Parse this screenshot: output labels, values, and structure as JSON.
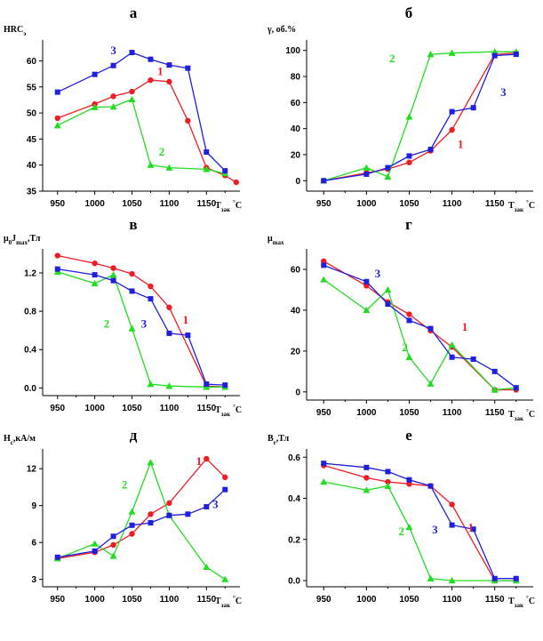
{
  "colors": {
    "1": "#ee1c25",
    "2": "#22dd22",
    "3": "#1f1fdd",
    "axis": "#000000"
  },
  "xunit": "Tзак °C",
  "chart_data": [
    {
      "type": "line",
      "panel": "а",
      "ylabel": "HRCэ",
      "xlim": [
        930,
        1195
      ],
      "ylim": [
        35,
        64
      ],
      "xticks": [
        950,
        1000,
        1050,
        1100,
        1150
      ],
      "yticks": [
        35,
        40,
        45,
        50,
        55,
        60
      ],
      "series": [
        {
          "name": "1",
          "marker": "circle",
          "x": [
            950,
            1000,
            1025,
            1050,
            1075,
            1100,
            1125,
            1150,
            1175,
            1190
          ],
          "y": [
            49,
            51.7,
            53.2,
            54.1,
            56.3,
            56,
            48.5,
            39.5,
            38,
            36.7
          ]
        },
        {
          "name": "2",
          "marker": "triangle",
          "x": [
            950,
            1000,
            1025,
            1050,
            1075,
            1100,
            1150,
            1175
          ],
          "y": [
            47.6,
            51.1,
            51.2,
            52.6,
            40,
            39.5,
            39.2,
            38.4
          ]
        },
        {
          "name": "3",
          "marker": "square",
          "x": [
            950,
            1000,
            1025,
            1050,
            1075,
            1100,
            1125,
            1150,
            1175
          ],
          "y": [
            54,
            57.4,
            59.1,
            61.6,
            60.3,
            59.2,
            58.6,
            42.5,
            38.9
          ]
        }
      ],
      "labels": [
        {
          "text": "3",
          "series": "3",
          "x": 1025,
          "y": 61.3
        },
        {
          "text": "1",
          "series": "1",
          "x": 1088,
          "y": 57.3
        },
        {
          "text": "2",
          "series": "2",
          "x": 1090,
          "y": 41.8
        }
      ]
    },
    {
      "type": "line",
      "panel": "б",
      "ylabel": "γ, об.%",
      "xlim": [
        930,
        1195
      ],
      "ylim": [
        -8,
        108
      ],
      "xticks": [
        950,
        1000,
        1050,
        1100,
        1150
      ],
      "yticks": [
        0,
        20,
        40,
        60,
        80,
        100
      ],
      "series": [
        {
          "name": "1",
          "marker": "circle",
          "x": [
            950,
            1000,
            1025,
            1050,
            1075,
            1100,
            1150,
            1175
          ],
          "y": [
            0,
            6,
            9,
            14,
            23,
            39,
            97,
            98
          ]
        },
        {
          "name": "2",
          "marker": "triangle",
          "x": [
            950,
            1000,
            1025,
            1050,
            1075,
            1100,
            1150,
            1175
          ],
          "y": [
            0,
            10,
            3,
            49,
            97,
            98,
            99,
            99
          ]
        },
        {
          "name": "3",
          "marker": "square",
          "x": [
            950,
            1000,
            1025,
            1050,
            1075,
            1100,
            1125,
            1150,
            1175
          ],
          "y": [
            0,
            5,
            10,
            19,
            24,
            53,
            56,
            96,
            97
          ]
        }
      ],
      "labels": [
        {
          "text": "2",
          "series": "2",
          "x": 1030,
          "y": 91
        },
        {
          "text": "3",
          "series": "3",
          "x": 1160,
          "y": 65
        },
        {
          "text": "1",
          "series": "1",
          "x": 1110,
          "y": 25
        }
      ]
    },
    {
      "type": "line",
      "panel": "в",
      "ylabel": "μ0Jmax,Тл",
      "xlim": [
        930,
        1195
      ],
      "ylim": [
        -0.08,
        1.45
      ],
      "xticks": [
        950,
        1000,
        1050,
        1100,
        1150
      ],
      "yticks": [
        0.0,
        0.4,
        0.8,
        1.2
      ],
      "series": [
        {
          "name": "1",
          "marker": "circle",
          "x": [
            950,
            1000,
            1025,
            1050,
            1075,
            1100,
            1150,
            1175
          ],
          "y": [
            1.38,
            1.3,
            1.25,
            1.19,
            1.06,
            0.84,
            0.02,
            0.01
          ]
        },
        {
          "name": "2",
          "marker": "triangle",
          "x": [
            950,
            1000,
            1025,
            1050,
            1075,
            1100,
            1150,
            1175
          ],
          "y": [
            1.21,
            1.09,
            1.18,
            0.62,
            0.04,
            0.02,
            0.01,
            0.01
          ]
        },
        {
          "name": "3",
          "marker": "square",
          "x": [
            950,
            1000,
            1025,
            1050,
            1075,
            1100,
            1125,
            1150,
            1175
          ],
          "y": [
            1.24,
            1.18,
            1.12,
            1.01,
            0.93,
            0.57,
            0.55,
            0.04,
            0.03
          ]
        }
      ],
      "labels": [
        {
          "text": "2",
          "series": "2",
          "x": 1016,
          "y": 0.63
        },
        {
          "text": "3",
          "series": "3",
          "x": 1066,
          "y": 0.63
        },
        {
          "text": "1",
          "series": "1",
          "x": 1122,
          "y": 0.67
        }
      ]
    },
    {
      "type": "line",
      "panel": "г",
      "ylabel": "μmax",
      "xlim": [
        930,
        1195
      ],
      "ylim": [
        -4,
        70
      ],
      "xticks": [
        950,
        1000,
        1050,
        1100,
        1150
      ],
      "yticks": [
        0,
        20,
        40,
        60
      ],
      "series": [
        {
          "name": "1",
          "marker": "circle",
          "x": [
            950,
            1000,
            1025,
            1050,
            1075,
            1100,
            1150,
            1175
          ],
          "y": [
            64,
            52,
            44,
            38,
            30,
            22,
            1,
            1
          ]
        },
        {
          "name": "2",
          "marker": "triangle",
          "x": [
            950,
            1000,
            1025,
            1050,
            1075,
            1100,
            1150,
            1175
          ],
          "y": [
            55,
            40,
            50,
            17,
            4,
            23,
            1,
            2
          ]
        },
        {
          "name": "3",
          "marker": "square",
          "x": [
            950,
            1000,
            1025,
            1050,
            1075,
            1100,
            1125,
            1150,
            1175
          ],
          "y": [
            62,
            54,
            43,
            35,
            31,
            17,
            16,
            10,
            2
          ]
        }
      ],
      "labels": [
        {
          "text": "3",
          "series": "3",
          "x": 1013,
          "y": 56
        },
        {
          "text": "1",
          "series": "1",
          "x": 1115,
          "y": 30
        },
        {
          "text": "2",
          "series": "2",
          "x": 1045,
          "y": 20
        }
      ]
    },
    {
      "type": "line",
      "panel": "д",
      "ylabel": "Hc,кА/м",
      "xlim": [
        930,
        1195
      ],
      "ylim": [
        2.4,
        13.6
      ],
      "xticks": [
        950,
        1000,
        1050,
        1100,
        1150
      ],
      "yticks": [
        3,
        6,
        9,
        12
      ],
      "series": [
        {
          "name": "1",
          "marker": "circle",
          "x": [
            950,
            1000,
            1025,
            1050,
            1075,
            1100,
            1150,
            1175
          ],
          "y": [
            4.7,
            5.2,
            5.8,
            6.7,
            8.3,
            9.2,
            12.8,
            11.3
          ]
        },
        {
          "name": "2",
          "marker": "triangle",
          "x": [
            950,
            1000,
            1025,
            1050,
            1075,
            1100,
            1150,
            1175
          ],
          "y": [
            4.7,
            5.9,
            4.9,
            8.5,
            12.5,
            8.2,
            4.0,
            3.0
          ]
        },
        {
          "name": "3",
          "marker": "square",
          "x": [
            950,
            1000,
            1025,
            1050,
            1075,
            1100,
            1125,
            1150,
            1175
          ],
          "y": [
            4.8,
            5.3,
            6.5,
            7.4,
            7.6,
            8.2,
            8.3,
            8.9,
            10.3
          ]
        }
      ],
      "labels": [
        {
          "text": "2",
          "series": "2",
          "x": 1040,
          "y": 10.4
        },
        {
          "text": "1",
          "series": "1",
          "x": 1140,
          "y": 12.3
        },
        {
          "text": "3",
          "series": "3",
          "x": 1162,
          "y": 8.8
        }
      ]
    },
    {
      "type": "line",
      "panel": "е",
      "ylabel": "Br,Тл",
      "xlim": [
        930,
        1195
      ],
      "ylim": [
        -0.03,
        0.64
      ],
      "xticks": [
        950,
        1000,
        1050,
        1100,
        1150
      ],
      "yticks": [
        0.0,
        0.2,
        0.4,
        0.6
      ],
      "series": [
        {
          "name": "1",
          "marker": "circle",
          "x": [
            950,
            1000,
            1025,
            1050,
            1075,
            1100,
            1150,
            1175
          ],
          "y": [
            0.56,
            0.5,
            0.48,
            0.47,
            0.46,
            0.37,
            0.0,
            0.0
          ]
        },
        {
          "name": "2",
          "marker": "triangle",
          "x": [
            950,
            1000,
            1025,
            1050,
            1075,
            1100,
            1150,
            1175
          ],
          "y": [
            0.48,
            0.44,
            0.46,
            0.26,
            0.01,
            0.0,
            0.0,
            0.0
          ]
        },
        {
          "name": "3",
          "marker": "square",
          "x": [
            950,
            1000,
            1025,
            1050,
            1075,
            1100,
            1125,
            1150,
            1175
          ],
          "y": [
            0.57,
            0.55,
            0.53,
            0.49,
            0.46,
            0.27,
            0.25,
            0.01,
            0.01
          ]
        }
      ],
      "labels": [
        {
          "text": "2",
          "series": "2",
          "x": 1041,
          "y": 0.22
        },
        {
          "text": "3",
          "series": "3",
          "x": 1080,
          "y": 0.23
        },
        {
          "text": "1",
          "series": "1",
          "x": 1122,
          "y": 0.24
        }
      ]
    }
  ]
}
